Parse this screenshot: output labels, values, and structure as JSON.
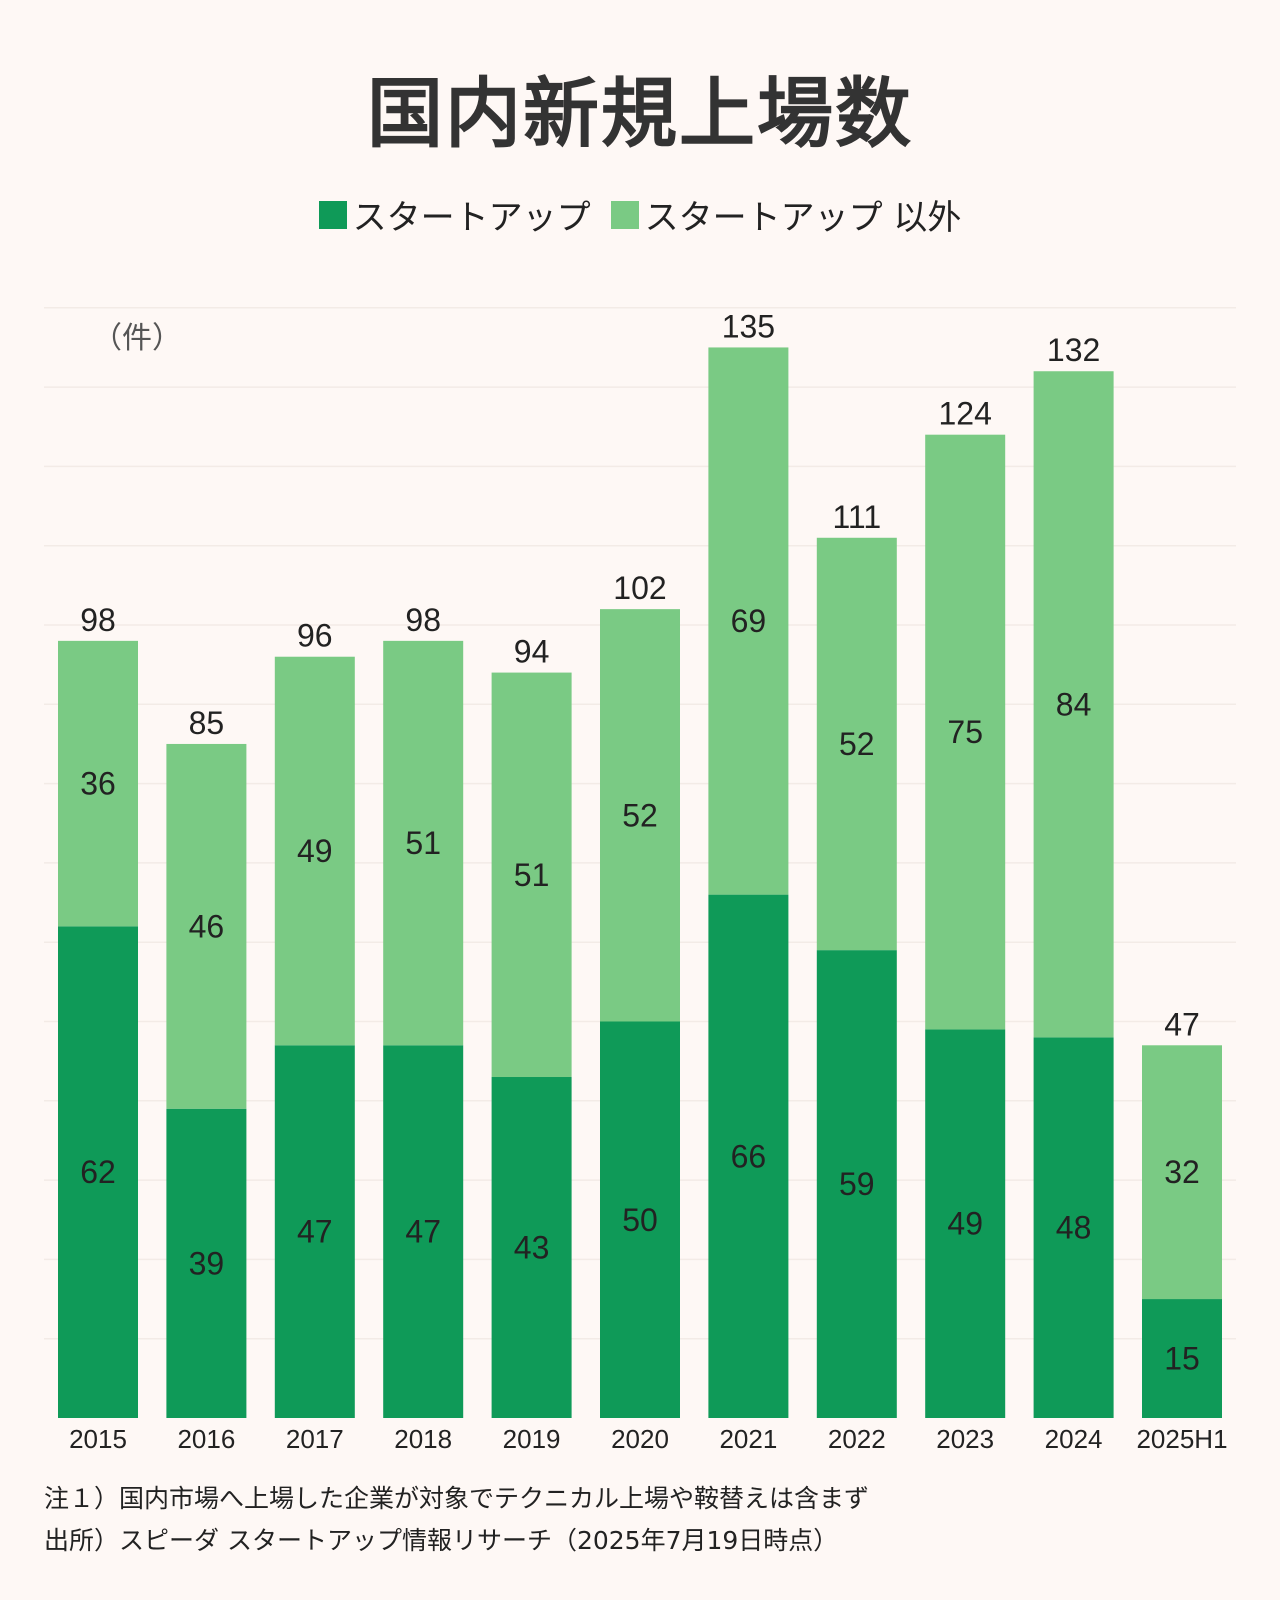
{
  "chart_data": {
    "type": "bar",
    "stacked": true,
    "title": "国内新規上場数",
    "ylabel": "（件）",
    "xlabel": "",
    "ylim": [
      0,
      140
    ],
    "grid": true,
    "legend_position": "top-center",
    "categories": [
      "2015",
      "2016",
      "2017",
      "2018",
      "2019",
      "2020",
      "2021",
      "2022",
      "2023",
      "2024",
      "2025H1"
    ],
    "series": [
      {
        "name": "スタートアップ",
        "color": "#0f9a58",
        "values": [
          62,
          39,
          47,
          47,
          43,
          50,
          66,
          59,
          49,
          48,
          15
        ]
      },
      {
        "name": "スタートアップ 以外",
        "color": "#7aca84",
        "values": [
          36,
          46,
          49,
          51,
          51,
          52,
          69,
          52,
          75,
          84,
          32
        ]
      }
    ],
    "totals": [
      98,
      85,
      96,
      98,
      94,
      102,
      135,
      111,
      124,
      132,
      47
    ]
  },
  "notes": [
    "注１）国内市場へ上場した企業が対象でテクニカル上場や鞍替えは含まず",
    "出所）スピーダ スタートアップ情報リサーチ（2025年7月19日時点）"
  ]
}
